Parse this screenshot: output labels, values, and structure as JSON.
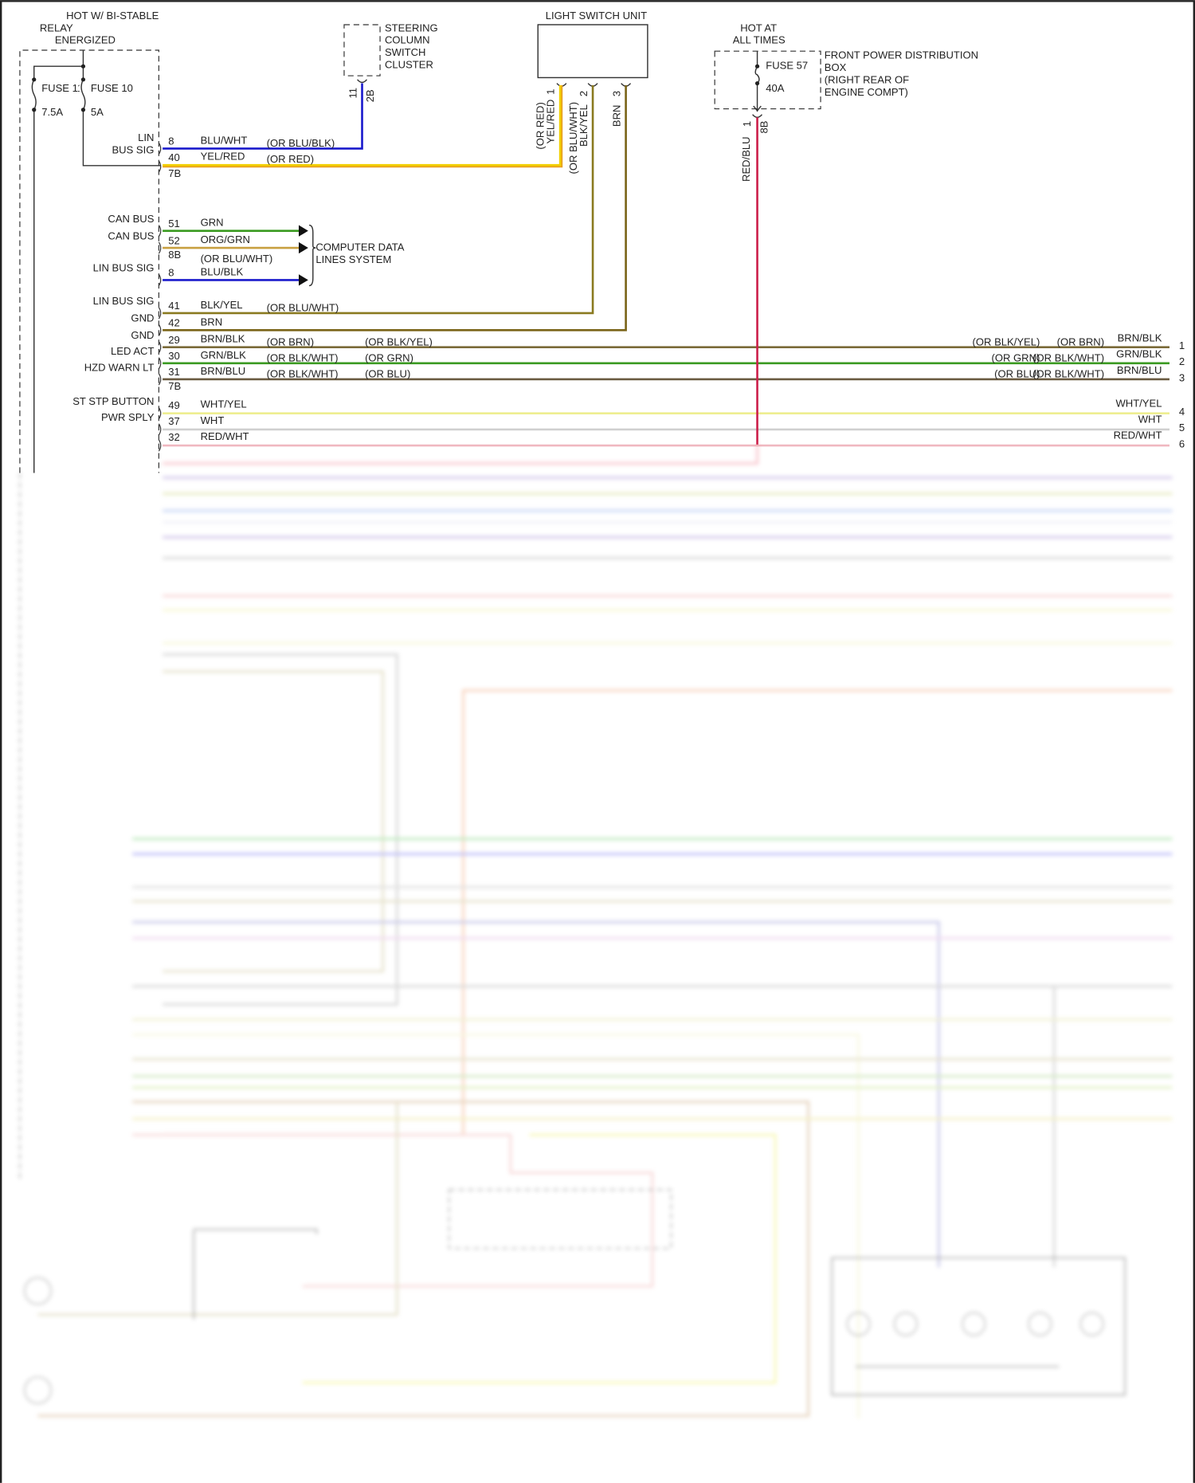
{
  "colors": {
    "blu": "#1a1acc",
    "yel": "#f2c200",
    "red": "#cc1f4a",
    "grn": "#3a9a20",
    "org": "#c8a040",
    "brn": "#7a6418",
    "gry": "#c8c8c8",
    "wht_yel": "#f0f0a0"
  },
  "components": {
    "bcm_title": [
      "HOT W/ BI-STABLE",
      "RELAY",
      "ENERGIZED"
    ],
    "fuse11": {
      "name": "FUSE 11",
      "rating": "7.5A"
    },
    "fuse10": {
      "name": "FUSE 10",
      "rating": "5A"
    },
    "steering": {
      "title": [
        "STEERING",
        "COLUMN",
        "SWITCH",
        "CLUSTER"
      ],
      "pin": "11",
      "connector": "2B"
    },
    "light_switch": {
      "title": "LIGHT SWITCH UNIT",
      "pins": [
        "1",
        "2",
        "3"
      ],
      "wire1": [
        "(OR RED)",
        "YEL/RED"
      ],
      "wire2": [
        "(OR BLU/WHT)",
        "BLK/YEL"
      ],
      "wire3": "BRN"
    },
    "fpdb": {
      "hot": [
        "HOT AT",
        "ALL TIMES"
      ],
      "fuse": "FUSE 57",
      "rating": "40A",
      "title": [
        "FRONT POWER DISTRIBUTION",
        "BOX",
        "(RIGHT REAR OF",
        "ENGINE COMPT)"
      ],
      "pin": "1",
      "connector": "8B",
      "wire": "RED/BLU"
    },
    "cdl": [
      "COMPUTER DATA",
      "LINES SYSTEM"
    ]
  },
  "circuits": [
    {
      "label": [
        "LIN",
        "BUS SIG"
      ],
      "pin": "8",
      "wire": "BLU/WHT",
      "alt": "(OR BLU/BLK)"
    },
    {
      "pin": "40",
      "wire": "YEL/RED",
      "alt": "(OR RED)",
      "conn": "7B"
    },
    {
      "label": "CAN BUS",
      "pin": "51",
      "wire": "GRN"
    },
    {
      "label": "CAN BUS",
      "pin": "52",
      "wire": "ORG/GRN",
      "conn": "8B"
    },
    {
      "label": "LIN BUS SIG",
      "pin": "8",
      "wire": "BLU/BLK",
      "alt": "(OR BLU/WHT)"
    },
    {
      "label": "LIN BUS SIG",
      "pin": "41",
      "wire": "BLK/YEL",
      "alt": "(OR BLU/WHT)"
    },
    {
      "label": "GND",
      "pin": "42",
      "wire": "BRN"
    },
    {
      "label": "GND",
      "pin": "29",
      "wire": "BRN/BLK",
      "alt": "(OR BRN)",
      "alt2": "(OR BLK/YEL)",
      "r_alt1": "(OR BLK/YEL)",
      "r_alt2": "(OR BRN)",
      "r_wire": "BRN/BLK",
      "r_num": "1"
    },
    {
      "label": "LED ACT",
      "pin": "30",
      "wire": "GRN/BLK",
      "alt": "(OR BLK/WHT)",
      "alt2": "(OR GRN)",
      "r_alt1": "(OR GRN)",
      "r_alt2": "(OR BLK/WHT)",
      "r_wire": "GRN/BLK",
      "r_num": "2"
    },
    {
      "label": "HZD WARN LT",
      "pin": "31",
      "wire": "BRN/BLU",
      "alt": "(OR BLK/WHT)",
      "alt2": "(OR BLU)",
      "r_alt1": "(OR BLU)",
      "r_alt2": "(OR BLK/WHT)",
      "r_wire": "BRN/BLU",
      "r_num": "3",
      "conn": "7B"
    },
    {
      "label": "ST STP BUTTON",
      "pin": "49",
      "wire": "WHT/YEL",
      "r_wire": "WHT/YEL",
      "r_num": "4"
    },
    {
      "label": "PWR SPLY",
      "pin": "37",
      "wire": "WHT",
      "r_wire": "WHT",
      "r_num": "5"
    },
    {
      "pin": "32",
      "wire": "RED/WHT",
      "r_wire": "RED/WHT",
      "r_num": "6"
    }
  ]
}
